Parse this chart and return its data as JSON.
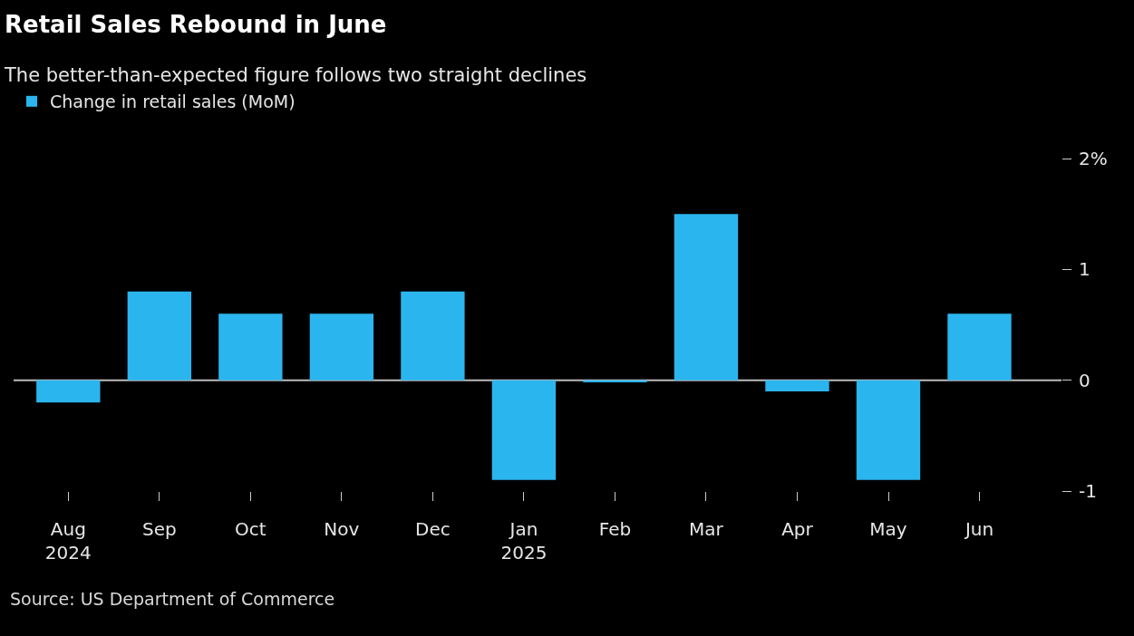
{
  "chart_data": {
    "type": "bar",
    "title": "Retail Sales Rebound in June",
    "subtitle": "The better-than-expected figure follows two straight declines",
    "categories": [
      "Aug\n2024",
      "Sep",
      "Oct",
      "Nov",
      "Dec",
      "Jan\n2025",
      "Feb",
      "Mar",
      "Apr",
      "May",
      "Jun"
    ],
    "series": [
      {
        "name": "Change in retail sales (MoM)",
        "color": "#2bb5ee",
        "values": [
          -0.2,
          0.8,
          0.6,
          0.6,
          0.8,
          -0.9,
          -0.02,
          1.5,
          -0.1,
          -0.9,
          0.6
        ]
      }
    ],
    "ylim": [
      -1,
      2
    ],
    "yticks": [
      {
        "value": 2,
        "label": "2%"
      },
      1,
      0,
      -1
    ],
    "grid": false,
    "ref_lines": [
      {
        "axis": "y",
        "value": 0,
        "color": "#bbbbbb"
      }
    ],
    "legend": "top left",
    "annotations": [
      "Source: US Department of Commerce"
    ]
  }
}
